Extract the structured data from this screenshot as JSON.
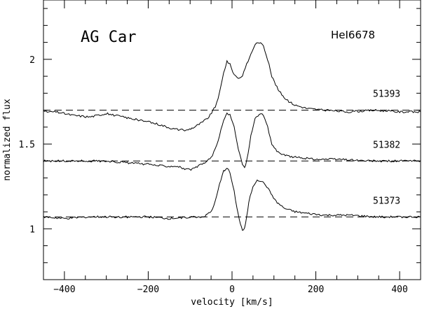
{
  "chart_data": {
    "type": "line",
    "title": "AG Car",
    "line_label": "HeI6678",
    "xlabel": "velocity [km/s]",
    "ylabel": "normalized flux",
    "xlim": [
      -450,
      450
    ],
    "ylim": [
      0.7,
      2.35
    ],
    "xticks": [
      -400,
      -200,
      0,
      200,
      400
    ],
    "xtick_labels": [
      "−400",
      "−200",
      "0",
      "200",
      "400"
    ],
    "yticks": [
      1,
      1.5,
      2
    ],
    "ytick_labels": [
      "1",
      "1.5",
      "2"
    ],
    "series": [
      {
        "name": "51393",
        "baseline": 1.7,
        "x": [
          -450,
          -420,
          -380,
          -340,
          -300,
          -260,
          -220,
          -180,
          -140,
          -110,
          -90,
          -70,
          -55,
          -40,
          -30,
          -20,
          -12,
          -5,
          5,
          15,
          25,
          35,
          45,
          55,
          65,
          75,
          85,
          95,
          110,
          130,
          150,
          180,
          220,
          280,
          340,
          400,
          450
        ],
        "y": [
          1.69,
          1.69,
          1.67,
          1.66,
          1.68,
          1.66,
          1.64,
          1.62,
          1.59,
          1.58,
          1.6,
          1.63,
          1.66,
          1.72,
          1.8,
          1.92,
          1.99,
          1.97,
          1.91,
          1.89,
          1.9,
          1.97,
          2.03,
          2.09,
          2.1,
          2.08,
          2.0,
          1.9,
          1.82,
          1.76,
          1.73,
          1.71,
          1.7,
          1.69,
          1.7,
          1.69,
          1.69
        ]
      },
      {
        "name": "51382",
        "baseline": 1.4,
        "x": [
          -450,
          -400,
          -350,
          -300,
          -250,
          -200,
          -160,
          -130,
          -110,
          -95,
          -80,
          -65,
          -50,
          -40,
          -30,
          -20,
          -12,
          -5,
          5,
          15,
          25,
          30,
          35,
          45,
          55,
          65,
          75,
          85,
          95,
          110,
          130,
          160,
          200,
          260,
          320,
          380,
          450
        ],
        "y": [
          1.4,
          1.4,
          1.4,
          1.4,
          1.39,
          1.38,
          1.37,
          1.37,
          1.35,
          1.35,
          1.37,
          1.39,
          1.42,
          1.47,
          1.55,
          1.64,
          1.68,
          1.67,
          1.6,
          1.47,
          1.38,
          1.36,
          1.4,
          1.55,
          1.65,
          1.68,
          1.67,
          1.6,
          1.5,
          1.45,
          1.43,
          1.42,
          1.41,
          1.41,
          1.4,
          1.4,
          1.4
        ]
      },
      {
        "name": "51373",
        "baseline": 1.07,
        "x": [
          -450,
          -400,
          -350,
          -300,
          -250,
          -200,
          -150,
          -100,
          -70,
          -50,
          -40,
          -30,
          -20,
          -12,
          -5,
          5,
          15,
          20,
          25,
          30,
          35,
          40,
          50,
          60,
          70,
          80,
          90,
          105,
          125,
          150,
          180,
          220,
          280,
          340,
          400,
          450
        ],
        "y": [
          1.07,
          1.06,
          1.07,
          1.07,
          1.07,
          1.07,
          1.06,
          1.07,
          1.07,
          1.1,
          1.16,
          1.26,
          1.34,
          1.36,
          1.33,
          1.22,
          1.08,
          1.03,
          0.99,
          1.0,
          1.07,
          1.16,
          1.25,
          1.29,
          1.28,
          1.26,
          1.22,
          1.16,
          1.12,
          1.1,
          1.09,
          1.08,
          1.08,
          1.07,
          1.07,
          1.07
        ]
      }
    ]
  }
}
